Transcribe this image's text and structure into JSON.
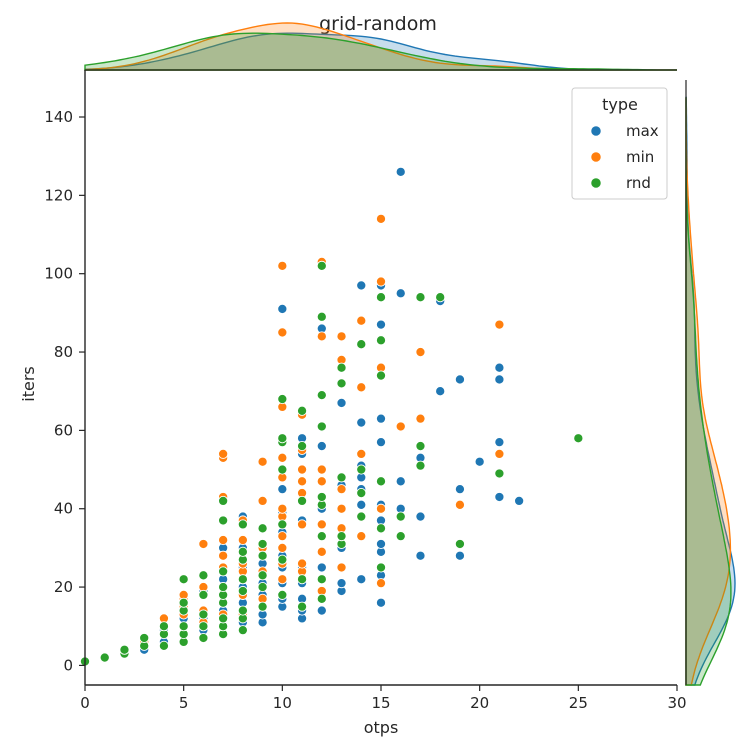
{
  "chart_data": {
    "type": "scatter",
    "title": "grid-random",
    "xlabel": "otps",
    "ylabel": "iters",
    "xlim": [
      0,
      30
    ],
    "ylim": [
      -5,
      152
    ],
    "xticks": [
      0,
      5,
      10,
      15,
      20,
      25,
      30
    ],
    "yticks": [
      0,
      20,
      40,
      60,
      80,
      100,
      120,
      140
    ],
    "grid": false,
    "marginal": "kde",
    "legend": {
      "title": "type",
      "placement": "top-right"
    },
    "series": [
      {
        "name": "max",
        "color": "#1f77b4",
        "points": [
          [
            3,
            4
          ],
          [
            4,
            6
          ],
          [
            4,
            9
          ],
          [
            5,
            8
          ],
          [
            5,
            12
          ],
          [
            5,
            15
          ],
          [
            6,
            9
          ],
          [
            6,
            12
          ],
          [
            6,
            19
          ],
          [
            7,
            10
          ],
          [
            7,
            14
          ],
          [
            7,
            16
          ],
          [
            7,
            22
          ],
          [
            7,
            30
          ],
          [
            8,
            11
          ],
          [
            8,
            14
          ],
          [
            8,
            16
          ],
          [
            8,
            18
          ],
          [
            8,
            20
          ],
          [
            8,
            22
          ],
          [
            8,
            25
          ],
          [
            8,
            30
          ],
          [
            8,
            38
          ],
          [
            9,
            11
          ],
          [
            9,
            13
          ],
          [
            9,
            15
          ],
          [
            9,
            18
          ],
          [
            9,
            21
          ],
          [
            9,
            26
          ],
          [
            10,
            15
          ],
          [
            10,
            17
          ],
          [
            10,
            21
          ],
          [
            10,
            25
          ],
          [
            10,
            28
          ],
          [
            10,
            34
          ],
          [
            10,
            39
          ],
          [
            10,
            45
          ],
          [
            10,
            91
          ],
          [
            11,
            12
          ],
          [
            11,
            14
          ],
          [
            11,
            17
          ],
          [
            11,
            21
          ],
          [
            11,
            25
          ],
          [
            11,
            37
          ],
          [
            11,
            54
          ],
          [
            11,
            58
          ],
          [
            12,
            14
          ],
          [
            12,
            17
          ],
          [
            12,
            25
          ],
          [
            12,
            40
          ],
          [
            12,
            56
          ],
          [
            12,
            86
          ],
          [
            13,
            19
          ],
          [
            13,
            21
          ],
          [
            13,
            30
          ],
          [
            13,
            46
          ],
          [
            13,
            67
          ],
          [
            14,
            22
          ],
          [
            14,
            33
          ],
          [
            14,
            41
          ],
          [
            14,
            45
          ],
          [
            14,
            48
          ],
          [
            14,
            51
          ],
          [
            14,
            62
          ],
          [
            14,
            97
          ],
          [
            15,
            16
          ],
          [
            15,
            23
          ],
          [
            15,
            29
          ],
          [
            15,
            31
          ],
          [
            15,
            37
          ],
          [
            15,
            41
          ],
          [
            15,
            57
          ],
          [
            15,
            63
          ],
          [
            15,
            87
          ],
          [
            15,
            97
          ],
          [
            16,
            40
          ],
          [
            16,
            47
          ],
          [
            16,
            95
          ],
          [
            16,
            126
          ],
          [
            17,
            28
          ],
          [
            17,
            38
          ],
          [
            17,
            53
          ],
          [
            18,
            70
          ],
          [
            18,
            93
          ],
          [
            19,
            28
          ],
          [
            19,
            45
          ],
          [
            19,
            73
          ],
          [
            20,
            52
          ],
          [
            21,
            43
          ],
          [
            21,
            57
          ],
          [
            21,
            73
          ],
          [
            21,
            76
          ],
          [
            22,
            42
          ]
        ]
      },
      {
        "name": "min",
        "color": "#ff7f0e",
        "points": [
          [
            3,
            6
          ],
          [
            4,
            8
          ],
          [
            4,
            12
          ],
          [
            5,
            13
          ],
          [
            5,
            15
          ],
          [
            5,
            17
          ],
          [
            5,
            18
          ],
          [
            6,
            11
          ],
          [
            6,
            14
          ],
          [
            6,
            20
          ],
          [
            6,
            31
          ],
          [
            7,
            13
          ],
          [
            7,
            20
          ],
          [
            7,
            25
          ],
          [
            7,
            28
          ],
          [
            7,
            32
          ],
          [
            7,
            43
          ],
          [
            7,
            53
          ],
          [
            7,
            54
          ],
          [
            8,
            13
          ],
          [
            8,
            18
          ],
          [
            8,
            24
          ],
          [
            8,
            26
          ],
          [
            8,
            32
          ],
          [
            8,
            37
          ],
          [
            9,
            17
          ],
          [
            9,
            24
          ],
          [
            9,
            30
          ],
          [
            9,
            35
          ],
          [
            9,
            42
          ],
          [
            9,
            52
          ],
          [
            10,
            22
          ],
          [
            10,
            26
          ],
          [
            10,
            30
          ],
          [
            10,
            33
          ],
          [
            10,
            38
          ],
          [
            10,
            40
          ],
          [
            10,
            48
          ],
          [
            10,
            53
          ],
          [
            10,
            66
          ],
          [
            10,
            85
          ],
          [
            10,
            102
          ],
          [
            11,
            24
          ],
          [
            11,
            26
          ],
          [
            11,
            36
          ],
          [
            11,
            44
          ],
          [
            11,
            47
          ],
          [
            11,
            50
          ],
          [
            11,
            55
          ],
          [
            11,
            64
          ],
          [
            12,
            19
          ],
          [
            12,
            29
          ],
          [
            12,
            36
          ],
          [
            12,
            47
          ],
          [
            12,
            50
          ],
          [
            12,
            84
          ],
          [
            12,
            103
          ],
          [
            13,
            25
          ],
          [
            13,
            35
          ],
          [
            13,
            40
          ],
          [
            13,
            45
          ],
          [
            13,
            78
          ],
          [
            13,
            84
          ],
          [
            14,
            33
          ],
          [
            14,
            54
          ],
          [
            14,
            71
          ],
          [
            14,
            88
          ],
          [
            15,
            21
          ],
          [
            15,
            40
          ],
          [
            15,
            76
          ],
          [
            15,
            98
          ],
          [
            15,
            114
          ],
          [
            16,
            61
          ],
          [
            17,
            63
          ],
          [
            17,
            80
          ],
          [
            19,
            41
          ],
          [
            21,
            54
          ],
          [
            21,
            87
          ]
        ]
      },
      {
        "name": "rnd",
        "color": "#2ca02c",
        "points": [
          [
            0,
            1
          ],
          [
            1,
            2
          ],
          [
            2,
            3
          ],
          [
            2,
            4
          ],
          [
            3,
            5
          ],
          [
            3,
            7
          ],
          [
            4,
            5
          ],
          [
            4,
            8
          ],
          [
            4,
            10
          ],
          [
            5,
            6
          ],
          [
            5,
            8
          ],
          [
            5,
            10
          ],
          [
            5,
            14
          ],
          [
            5,
            16
          ],
          [
            5,
            22
          ],
          [
            6,
            7
          ],
          [
            6,
            10
          ],
          [
            6,
            13
          ],
          [
            6,
            18
          ],
          [
            6,
            23
          ],
          [
            7,
            8
          ],
          [
            7,
            10
          ],
          [
            7,
            12
          ],
          [
            7,
            16
          ],
          [
            7,
            18
          ],
          [
            7,
            20
          ],
          [
            7,
            24
          ],
          [
            7,
            37
          ],
          [
            7,
            42
          ],
          [
            8,
            9
          ],
          [
            8,
            12
          ],
          [
            8,
            14
          ],
          [
            8,
            19
          ],
          [
            8,
            22
          ],
          [
            8,
            27
          ],
          [
            8,
            29
          ],
          [
            8,
            36
          ],
          [
            9,
            15
          ],
          [
            9,
            20
          ],
          [
            9,
            23
          ],
          [
            9,
            28
          ],
          [
            9,
            31
          ],
          [
            9,
            35
          ],
          [
            10,
            18
          ],
          [
            10,
            27
          ],
          [
            10,
            36
          ],
          [
            10,
            50
          ],
          [
            10,
            57
          ],
          [
            10,
            58
          ],
          [
            10,
            68
          ],
          [
            11,
            15
          ],
          [
            11,
            22
          ],
          [
            11,
            42
          ],
          [
            11,
            56
          ],
          [
            11,
            65
          ],
          [
            12,
            17
          ],
          [
            12,
            22
          ],
          [
            12,
            33
          ],
          [
            12,
            41
          ],
          [
            12,
            43
          ],
          [
            12,
            61
          ],
          [
            12,
            69
          ],
          [
            12,
            89
          ],
          [
            12,
            102
          ],
          [
            13,
            31
          ],
          [
            13,
            33
          ],
          [
            13,
            48
          ],
          [
            13,
            72
          ],
          [
            13,
            76
          ],
          [
            14,
            38
          ],
          [
            14,
            44
          ],
          [
            14,
            50
          ],
          [
            14,
            82
          ],
          [
            15,
            25
          ],
          [
            15,
            35
          ],
          [
            15,
            47
          ],
          [
            15,
            74
          ],
          [
            15,
            83
          ],
          [
            15,
            94
          ],
          [
            16,
            33
          ],
          [
            16,
            38
          ],
          [
            17,
            51
          ],
          [
            17,
            56
          ],
          [
            17,
            94
          ],
          [
            18,
            94
          ],
          [
            19,
            31
          ],
          [
            21,
            49
          ],
          [
            25,
            58
          ]
        ]
      }
    ]
  }
}
